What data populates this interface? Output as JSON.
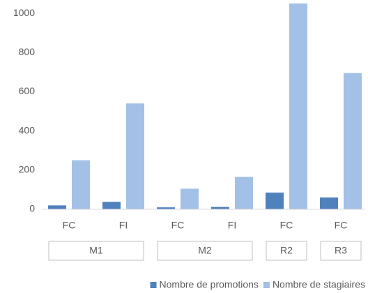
{
  "chart_data": {
    "type": "bar",
    "category_groups": [
      {
        "name": "M1",
        "categories": [
          "FC",
          "FI"
        ]
      },
      {
        "name": "M2",
        "categories": [
          "FC",
          "FI"
        ]
      },
      {
        "name": "R2",
        "categories": [
          "FC"
        ]
      },
      {
        "name": "R3",
        "categories": [
          "FC"
        ]
      }
    ],
    "series": [
      {
        "name": "Nombre de promotions",
        "color": "#4f81bd",
        "values": [
          20,
          38,
          10,
          12,
          85,
          60
        ]
      },
      {
        "name": "Nombre de stagiaires",
        "color": "#a3c0e6",
        "values": [
          250,
          540,
          105,
          165,
          1050,
          695
        ]
      }
    ],
    "ylim": [
      0,
      1050
    ],
    "yticks": [
      0,
      200,
      400,
      600,
      800,
      1000
    ],
    "grid": false,
    "legend": "bottom-right"
  }
}
